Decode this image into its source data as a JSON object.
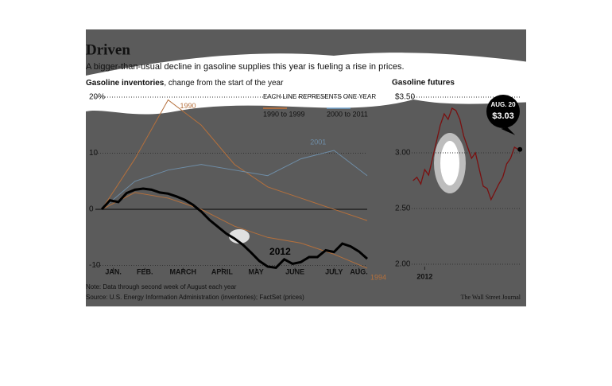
{
  "header": {
    "title": "Driven",
    "subtitle": "A bigger-than-usual decline in gasoline supplies this year is fueling a rise in prices."
  },
  "footer": {
    "note": "Note: Data through second week of August each year",
    "source": "Source: U.S. Energy Information Administration (inventories); FactSet (prices)",
    "credit": "The Wall Street Journal"
  },
  "chart_data": [
    {
      "type": "line",
      "title": "Gasoline inventories",
      "subtitle": ", change from the start of the year",
      "legend_title": "EACH LINE REPRESENTS ONE YEAR",
      "legend": [
        {
          "name": "1990 to 1999",
          "color": "#c8743a"
        },
        {
          "name": "2000 to 2011",
          "color": "#6fa0c8"
        }
      ],
      "xlim": [
        0,
        32
      ],
      "xticks": [
        {
          "value": 1.4,
          "label": "JAN."
        },
        {
          "value": 5.2,
          "label": "FEB."
        },
        {
          "value": 9.8,
          "label": "MARCH"
        },
        {
          "value": 14.5,
          "label": "APRIL"
        },
        {
          "value": 18.6,
          "label": "MAY"
        },
        {
          "value": 23.3,
          "label": "JUNE"
        },
        {
          "value": 28,
          "label": "JULY"
        },
        {
          "value": 31,
          "label": "AUG."
        }
      ],
      "ylim": [
        -11,
        20.5
      ],
      "yticks": [
        {
          "value": 20,
          "label": "20%"
        },
        10,
        0,
        -10
      ],
      "grid": true,
      "series": [
        {
          "name": "1990",
          "color": "#b5703c",
          "x": [
            0,
            4,
            8,
            12,
            16,
            20,
            24,
            28,
            32
          ],
          "values": [
            0,
            9,
            19.5,
            15,
            8,
            4,
            2,
            0,
            -2
          ]
        },
        {
          "name": "2001",
          "color": "#6f8ea8",
          "x": [
            0,
            4,
            8,
            12,
            16,
            20,
            24,
            28,
            32
          ],
          "values": [
            0,
            5,
            7,
            8,
            7,
            6,
            9,
            10.5,
            6
          ]
        },
        {
          "name": "1994",
          "color": "#b5703c",
          "x": [
            0,
            4,
            8,
            12,
            16,
            20,
            24,
            28,
            32
          ],
          "values": [
            0,
            3,
            2,
            0,
            -3,
            -5,
            -6,
            -8,
            -10.5
          ]
        },
        {
          "name": "2012",
          "color": "#000000",
          "x": [
            0,
            1,
            2,
            3,
            4,
            5,
            6,
            7,
            8,
            9,
            10,
            11,
            12,
            13,
            14,
            15,
            16,
            17,
            18,
            19,
            20,
            21,
            22,
            23,
            24,
            25,
            26,
            27,
            28,
            29,
            30,
            31,
            32
          ],
          "values": [
            0,
            1.6,
            1.3,
            2.9,
            3.5,
            3.7,
            3.5,
            3.0,
            2.8,
            2.3,
            1.7,
            0.8,
            -0.4,
            -1.9,
            -3.1,
            -4.3,
            -5.2,
            -6.3,
            -7.7,
            -9.2,
            -10.2,
            -10.4,
            -8.9,
            -9.7,
            -9.4,
            -8.5,
            -8.5,
            -7.3,
            -7.6,
            -6.1,
            -6.6,
            -7.5,
            -8.8
          ]
        }
      ]
    },
    {
      "type": "line",
      "title": "Gasoline futures",
      "xlim": [
        -4,
        29
      ],
      "xticks": [
        {
          "value": 3,
          "label": "2012"
        }
      ],
      "ylim": [
        1.95,
        3.55
      ],
      "yticks": [
        {
          "value": 3.5,
          "label": "$3.50"
        },
        {
          "value": 3,
          "label": "3.00"
        },
        {
          "value": 2.5,
          "label": "2.50"
        },
        {
          "value": 2,
          "label": "2.00"
        }
      ],
      "grid": true,
      "series": [
        {
          "color": "#7a1010",
          "x": [
            0,
            1,
            2,
            3,
            4,
            5,
            6,
            7,
            8,
            9,
            10,
            11,
            12,
            13,
            14,
            15,
            16,
            17,
            18,
            19,
            20,
            21,
            22,
            23,
            24,
            25,
            26,
            27
          ],
          "values": [
            2.75,
            2.78,
            2.72,
            2.85,
            2.8,
            2.95,
            3.1,
            3.25,
            3.35,
            3.3,
            3.4,
            3.38,
            3.3,
            3.15,
            3.05,
            2.95,
            3.0,
            2.85,
            2.7,
            2.68,
            2.58,
            2.65,
            2.72,
            2.78,
            2.9,
            2.95,
            3.05,
            3.03
          ]
        }
      ],
      "annotation": {
        "date": "AUG. 20",
        "value": "$3.03"
      }
    }
  ]
}
